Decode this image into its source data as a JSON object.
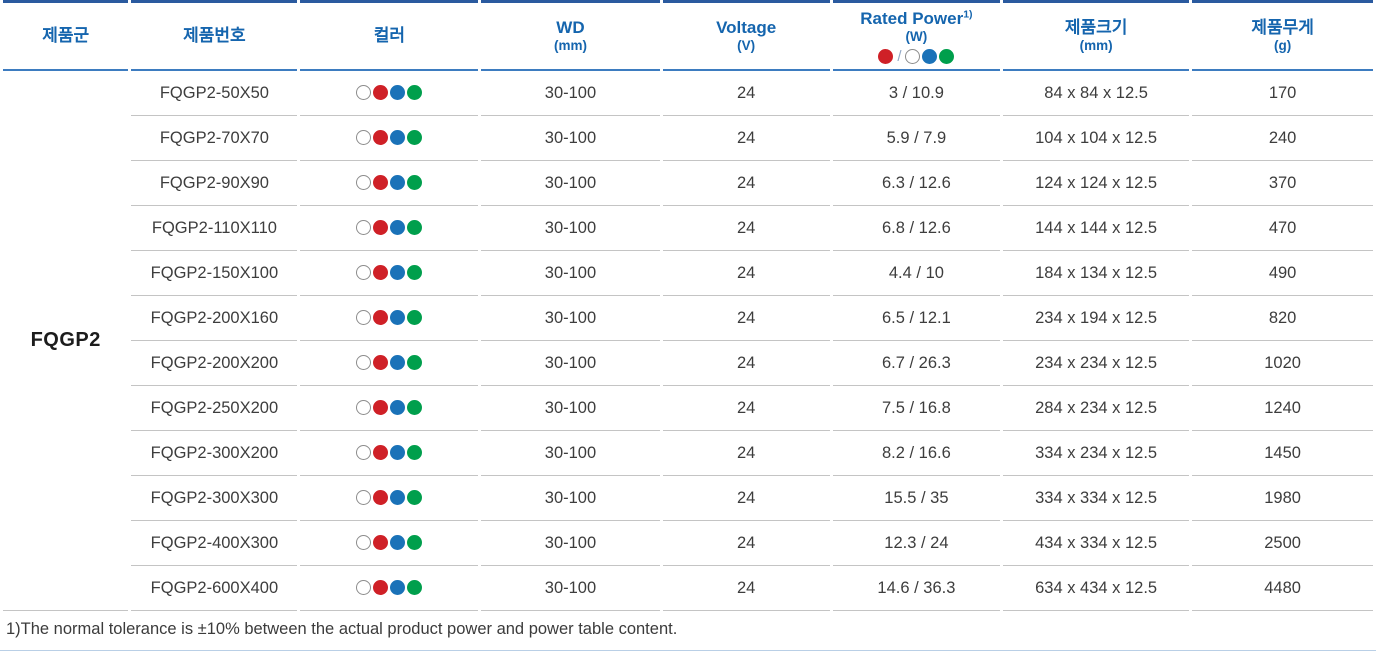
{
  "colors": {
    "header_text": "#1565ae",
    "table_top_border": "#2a5a9f",
    "header_underline": "#3d7cc0",
    "row_divider": "#c4c4c4",
    "body_text": "#3d3d3d",
    "dot_red": "#cf2027",
    "dot_blue": "#1a72b8",
    "dot_green": "#009f4c",
    "dot_white_border": "#8c8c8c"
  },
  "table": {
    "family": "FQGP2",
    "columns": [
      {
        "label": "제품군"
      },
      {
        "label": "제품번호"
      },
      {
        "label": "컬러"
      },
      {
        "label": "WD",
        "sub": "(mm)"
      },
      {
        "label": "Voltage",
        "sub": "(V)"
      },
      {
        "label": "Rated Power",
        "sup": "1)",
        "sub": "(W)",
        "separator": "/"
      },
      {
        "label": "제품크기",
        "sub": "(mm)"
      },
      {
        "label": "제품무게",
        "sub": "(g)"
      }
    ],
    "legend": {
      "header_dots_left": [
        "red"
      ],
      "header_dots_right": [
        "white",
        "blue",
        "green"
      ],
      "row_dots": [
        "white",
        "red",
        "blue",
        "green"
      ]
    },
    "rows": [
      {
        "part": "FQGP2-50X50",
        "wd": "30-100",
        "voltage": "24",
        "power": "3 / 10.9",
        "size": "84 x 84 x 12.5",
        "weight": "170"
      },
      {
        "part": "FQGP2-70X70",
        "wd": "30-100",
        "voltage": "24",
        "power": "5.9 / 7.9",
        "size": "104 x 104 x 12.5",
        "weight": "240"
      },
      {
        "part": "FQGP2-90X90",
        "wd": "30-100",
        "voltage": "24",
        "power": "6.3 / 12.6",
        "size": "124 x 124 x 12.5",
        "weight": "370"
      },
      {
        "part": "FQGP2-110X110",
        "wd": "30-100",
        "voltage": "24",
        "power": "6.8 / 12.6",
        "size": "144 x 144 x 12.5",
        "weight": "470"
      },
      {
        "part": "FQGP2-150X100",
        "wd": "30-100",
        "voltage": "24",
        "power": "4.4 / 10",
        "size": "184 x 134 x 12.5",
        "weight": "490"
      },
      {
        "part": "FQGP2-200X160",
        "wd": "30-100",
        "voltage": "24",
        "power": "6.5 / 12.1",
        "size": "234 x 194 x 12.5",
        "weight": "820"
      },
      {
        "part": "FQGP2-200X200",
        "wd": "30-100",
        "voltage": "24",
        "power": "6.7 / 26.3",
        "size": "234 x 234 x 12.5",
        "weight": "1020"
      },
      {
        "part": "FQGP2-250X200",
        "wd": "30-100",
        "voltage": "24",
        "power": "7.5 / 16.8",
        "size": "284 x 234 x 12.5",
        "weight": "1240"
      },
      {
        "part": "FQGP2-300X200",
        "wd": "30-100",
        "voltage": "24",
        "power": "8.2 / 16.6",
        "size": "334 x 234 x 12.5",
        "weight": "1450"
      },
      {
        "part": "FQGP2-300X300",
        "wd": "30-100",
        "voltage": "24",
        "power": "15.5 / 35",
        "size": "334 x 334 x 12.5",
        "weight": "1980"
      },
      {
        "part": "FQGP2-400X300",
        "wd": "30-100",
        "voltage": "24",
        "power": "12.3 / 24",
        "size": "434 x 334 x 12.5",
        "weight": "2500"
      },
      {
        "part": "FQGP2-600X400",
        "wd": "30-100",
        "voltage": "24",
        "power": "14.6 / 36.3",
        "size": "634 x 434 x 12.5",
        "weight": "4480"
      }
    ]
  },
  "footnote": "1)The normal tolerance is ±10% between the actual product power and power table content."
}
